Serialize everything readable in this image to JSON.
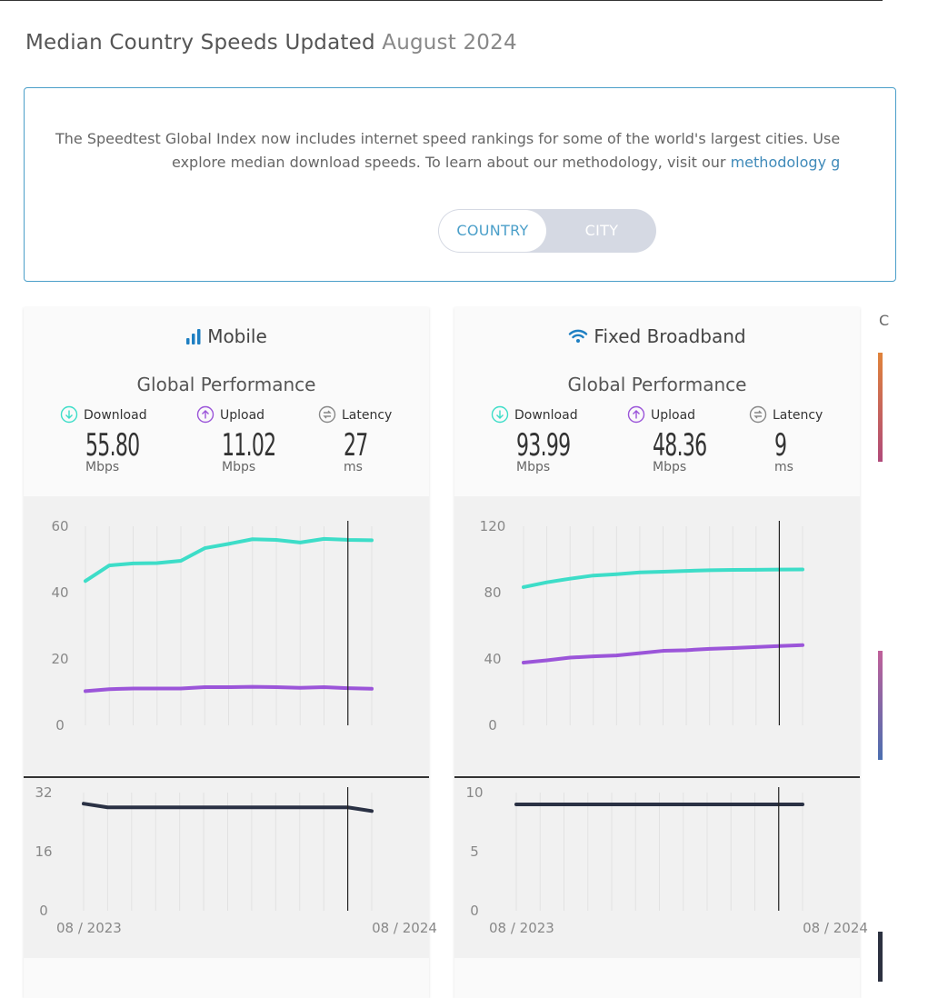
{
  "page": {
    "title": "Median Country Speeds Updated",
    "title_date": "August 2024"
  },
  "info": {
    "line1": "The Speedtest Global Index now includes internet speed rankings for some of the world's largest cities. Use",
    "line2": "explore median download speeds. To learn about our methodology, visit our ",
    "link": "methodology g"
  },
  "toggle": {
    "country": "COUNTRY",
    "city": "CITY",
    "selected": "COUNTRY"
  },
  "side": {
    "mark": "C"
  },
  "colors": {
    "download": "#3dddc8",
    "upload": "#9b55d9",
    "latency": "#2a3144",
    "accent": "#4b9fc9"
  },
  "mobile": {
    "title": "Mobile",
    "icon": "signal-bars-icon",
    "perf_title": "Global Performance",
    "download": {
      "label": "Download",
      "value": "55.80",
      "unit": "Mbps"
    },
    "upload": {
      "label": "Upload",
      "value": "11.02",
      "unit": "Mbps"
    },
    "latency": {
      "label": "Latency",
      "value": "27",
      "unit": "ms"
    }
  },
  "broadband": {
    "title": "Fixed Broadband",
    "icon": "wifi-icon",
    "perf_title": "Global Performance",
    "download": {
      "label": "Download",
      "value": "93.99",
      "unit": "Mbps"
    },
    "upload": {
      "label": "Upload",
      "value": "48.36",
      "unit": "Mbps"
    },
    "latency": {
      "label": "Latency",
      "value": "9",
      "unit": "ms"
    }
  },
  "chart_data": [
    {
      "type": "line",
      "x": [
        "08 / 2023",
        "09 / 2023",
        "10 / 2023",
        "11 / 2023",
        "12 / 2023",
        "01 / 2024",
        "02 / 2024",
        "03 / 2024",
        "04 / 2024",
        "05 / 2024",
        "06 / 2024",
        "07 / 2024",
        "08 / 2024"
      ],
      "xticks": [
        "08 / 2023",
        "08 / 2024"
      ],
      "ylim": [
        0,
        60
      ],
      "yticks": [
        "0",
        "20",
        "40",
        "60"
      ],
      "series": [
        {
          "key": "download",
          "values": [
            43.5,
            48.2,
            48.8,
            48.9,
            49.6,
            53.4,
            54.7,
            56.1,
            55.9,
            55.1,
            56.2,
            55.9,
            55.8
          ]
        },
        {
          "key": "upload",
          "values": [
            10.3,
            10.9,
            11.1,
            11.1,
            11.1,
            11.5,
            11.5,
            11.6,
            11.5,
            11.3,
            11.5,
            11.2,
            11.02
          ]
        }
      ],
      "marker_index": 11
    },
    {
      "type": "line",
      "x": [
        "08 / 2023",
        "09 / 2023",
        "10 / 2023",
        "11 / 2023",
        "12 / 2023",
        "01 / 2024",
        "02 / 2024",
        "03 / 2024",
        "04 / 2024",
        "05 / 2024",
        "06 / 2024",
        "07 / 2024",
        "08 / 2024"
      ],
      "ylim": [
        0,
        32
      ],
      "yticks": [
        "0",
        "16",
        "32"
      ],
      "series": [
        {
          "key": "latency",
          "values": [
            29,
            28,
            28,
            28,
            28,
            28,
            28,
            28,
            28,
            28,
            28,
            28,
            27
          ]
        }
      ],
      "marker_index": 11
    },
    {
      "type": "line",
      "x": [
        "08 / 2023",
        "09 / 2023",
        "10 / 2023",
        "11 / 2023",
        "12 / 2023",
        "01 / 2024",
        "02 / 2024",
        "03 / 2024",
        "04 / 2024",
        "05 / 2024",
        "06 / 2024",
        "07 / 2024",
        "08 / 2024"
      ],
      "xticks": [
        "08 / 2023",
        "08 / 2024"
      ],
      "ylim": [
        0,
        120
      ],
      "yticks": [
        "0",
        "40",
        "80",
        "120"
      ],
      "series": [
        {
          "key": "download",
          "values": [
            83.3,
            86.2,
            88.4,
            90.3,
            91.1,
            92.2,
            92.6,
            93.1,
            93.5,
            93.7,
            93.8,
            93.9,
            93.99
          ]
        },
        {
          "key": "upload",
          "values": [
            37.8,
            39.2,
            40.8,
            41.6,
            42.1,
            43.5,
            44.9,
            45.3,
            46.1,
            46.6,
            47.2,
            47.8,
            48.36
          ]
        }
      ],
      "marker_index": 11
    },
    {
      "type": "line",
      "x": [
        "08 / 2023",
        "09 / 2023",
        "10 / 2023",
        "11 / 2023",
        "12 / 2023",
        "01 / 2024",
        "02 / 2024",
        "03 / 2024",
        "04 / 2024",
        "05 / 2024",
        "06 / 2024",
        "07 / 2024",
        "08 / 2024"
      ],
      "ylim": [
        0,
        10
      ],
      "yticks": [
        "0",
        "5",
        "10"
      ],
      "series": [
        {
          "key": "latency",
          "values": [
            9,
            9,
            9,
            9,
            9,
            9,
            9,
            9,
            9,
            9,
            9,
            9,
            9
          ]
        }
      ],
      "marker_index": 11
    }
  ]
}
